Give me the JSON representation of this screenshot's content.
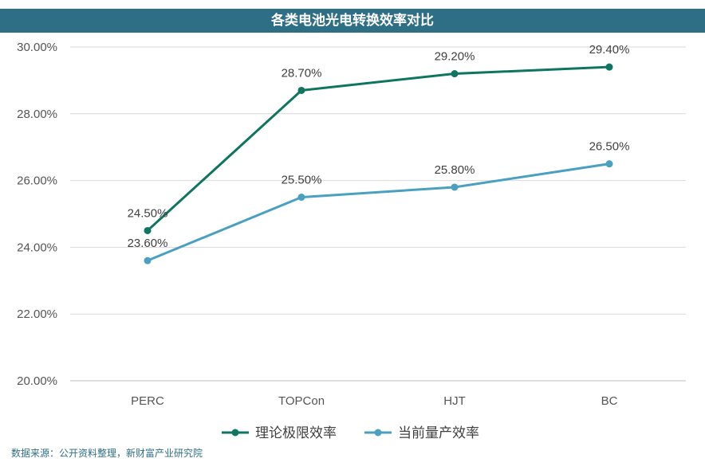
{
  "chart_data": {
    "type": "line",
    "title": "各类电池光电转换效率对比",
    "categories": [
      "PERC",
      "TOPCon",
      "HJT",
      "BC"
    ],
    "series": [
      {
        "name": "理论极限效率",
        "values": [
          24.5,
          28.7,
          29.2,
          29.4
        ],
        "color": "#0d7560",
        "labels": [
          "24.50%",
          "28.70%",
          "29.20%",
          "29.40%"
        ]
      },
      {
        "name": "当前量产效率",
        "values": [
          23.6,
          25.5,
          25.8,
          26.5
        ],
        "color": "#4aa0c0",
        "labels": [
          "23.60%",
          "25.50%",
          "25.80%",
          "26.50%"
        ]
      }
    ],
    "yticks": [
      "20.00%",
      "22.00%",
      "24.00%",
      "26.00%",
      "28.00%",
      "30.00%"
    ],
    "ylim": [
      20,
      30
    ],
    "grid": true,
    "legend": "bottom-center"
  },
  "source": "数据来源：公开资料整理，新财富产业研究院"
}
